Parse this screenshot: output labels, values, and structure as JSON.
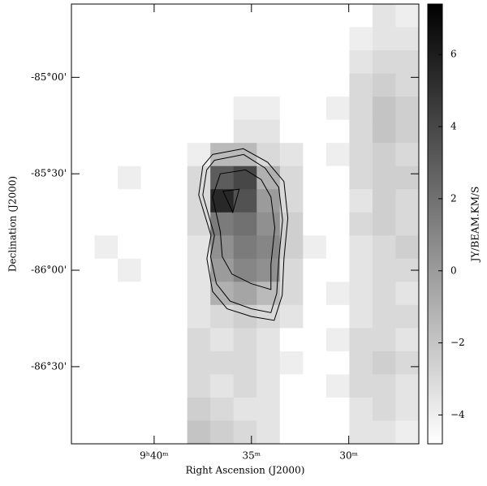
{
  "chart_data": {
    "type": "heatmap",
    "xlabel": "Right Ascension (J2000)",
    "ylabel": "Declination (J2000)",
    "colorbar_label": "JY/BEAM.KM/S",
    "xlim": [
      44.25,
      26.4
    ],
    "ylim": [
      -86.9,
      -84.62
    ],
    "xticks": [
      {
        "value": 40,
        "label": "9ʰ40ᵐ"
      },
      {
        "value": 35,
        "label": "35ᵐ"
      },
      {
        "value": 30,
        "label": "30ᵐ"
      }
    ],
    "yticks": [
      {
        "value": -85,
        "label": "-85°00'"
      },
      {
        "value": -85.5,
        "label": "-85°30'"
      },
      {
        "value": -86,
        "label": "-86°00'"
      },
      {
        "value": -86.5,
        "label": "-86°30'"
      }
    ],
    "clim": [
      -4.8,
      7.4
    ],
    "cticks": [
      {
        "value": -4,
        "label": "−4"
      },
      {
        "value": -2,
        "label": "−2"
      },
      0,
      2,
      4,
      6
    ],
    "z": [
      [
        -4.8,
        -4.8,
        -4.8,
        -4.8,
        -4.8,
        -4.8,
        -4.8,
        -4.8,
        -4.8,
        -4.8,
        -4.8,
        -4.8,
        -4.8,
        -3.5,
        -4
      ],
      [
        -4.8,
        -4.8,
        -4.8,
        -4.8,
        -4.8,
        -4.8,
        -4.8,
        -4.8,
        -4.8,
        -4.8,
        -4.8,
        -4.8,
        -4,
        -3.5,
        -3.5
      ],
      [
        -4.8,
        -4.8,
        -4.8,
        -4.8,
        -4.8,
        -4.8,
        -4.8,
        -4.8,
        -4.8,
        -4.8,
        -4.8,
        -4.8,
        -3.5,
        -3,
        -3
      ],
      [
        -4.8,
        -4.8,
        -4.8,
        -4.8,
        -4.8,
        -4.8,
        -4.8,
        -4.8,
        -4.8,
        -4.8,
        -4.8,
        -4.8,
        -3,
        -2.5,
        -3
      ],
      [
        -4.8,
        -4.8,
        -4.8,
        -4.8,
        -4.8,
        -4.8,
        -4.8,
        -4,
        -4,
        -4.8,
        -4.8,
        -4,
        -3,
        -2,
        -2.5
      ],
      [
        -4.8,
        -4.8,
        -4.8,
        -4.8,
        -4.8,
        -4.8,
        -4.8,
        -3.5,
        -3.5,
        -4.8,
        -4.8,
        -4.8,
        -3,
        -2,
        -2.5
      ],
      [
        -4.8,
        -4.8,
        -4.8,
        -4.8,
        -4.8,
        -4,
        -1.5,
        -1.5,
        -3,
        -3.5,
        -4.8,
        -4,
        -3,
        -2.5,
        -3
      ],
      [
        -4.8,
        -4.8,
        -4,
        -4.8,
        -4.8,
        -3,
        3,
        4,
        -1,
        -3,
        -4.8,
        -4.8,
        -3,
        -2.5,
        -2.5
      ],
      [
        -4.8,
        -4.8,
        -4.8,
        -4.8,
        -4.8,
        -3,
        5.5,
        3.5,
        0,
        -3,
        -4.8,
        -4.8,
        -3.5,
        -2.5,
        -3
      ],
      [
        -4.8,
        -4.8,
        -4.8,
        -4.8,
        -4.8,
        -3,
        1.5,
        2,
        0.5,
        -2.5,
        -4.8,
        -4.8,
        -3,
        -2.5,
        -3
      ],
      [
        -4.8,
        -4,
        -4.8,
        -4.8,
        -4.8,
        -3.5,
        0.5,
        1.5,
        1,
        -2.5,
        -4,
        -4.8,
        -3.5,
        -3,
        -2.5
      ],
      [
        -4.8,
        -4.8,
        -4,
        -4.8,
        -4.8,
        -3.5,
        0,
        1,
        0.5,
        -3,
        -4.8,
        -4.8,
        -3.5,
        -3,
        -3
      ],
      [
        -4.8,
        -4.8,
        -4.8,
        -4.8,
        -4.8,
        -3.5,
        -1,
        -0.5,
        -1.5,
        -3,
        -4.8,
        -4,
        -3.5,
        -3,
        -3.5
      ],
      [
        -4.8,
        -4.8,
        -4.8,
        -4.8,
        -4.8,
        -3.5,
        -3,
        -2.5,
        -3,
        -3.5,
        -4.8,
        -4.8,
        -3.5,
        -3,
        -3
      ],
      [
        -4.8,
        -4.8,
        -4.8,
        -4.8,
        -4.8,
        -3,
        -3.5,
        -3,
        -3.5,
        -4.8,
        -4.8,
        -4,
        -3,
        -3,
        -3.5
      ],
      [
        -4.8,
        -4.8,
        -4.8,
        -4.8,
        -4.8,
        -3,
        -3,
        -3,
        -3.5,
        -4,
        -4.8,
        -4.8,
        -3,
        -2.5,
        -3
      ],
      [
        -4.8,
        -4.8,
        -4.8,
        -4.8,
        -4.8,
        -3,
        -3.5,
        -3,
        -3.5,
        -4.8,
        -4.8,
        -4,
        -3,
        -3,
        -3.5
      ],
      [
        -4.8,
        -4.8,
        -4.8,
        -4.8,
        -4.8,
        -2.5,
        -3,
        -3.5,
        -3.5,
        -4.8,
        -4.8,
        -4.8,
        -3.5,
        -3,
        -3.5
      ],
      [
        -4.8,
        -4.8,
        -4.8,
        -4.8,
        -4.8,
        -2,
        -2.5,
        -3,
        -3.5,
        -4.8,
        -4.8,
        -4.8,
        -3.5,
        -3.5,
        -4
      ]
    ],
    "contours": [
      [
        [
          37.0,
          -85.4
        ],
        [
          35.42,
          -85.37
        ],
        [
          34.17,
          -85.44
        ],
        [
          33.33,
          -85.54
        ],
        [
          33.13,
          -85.73
        ],
        [
          33.33,
          -85.94
        ],
        [
          33.42,
          -86.13
        ],
        [
          33.83,
          -86.26
        ],
        [
          35.0,
          -86.24
        ],
        [
          36.25,
          -86.2
        ],
        [
          37.0,
          -86.11
        ],
        [
          37.29,
          -85.94
        ],
        [
          37.08,
          -85.82
        ],
        [
          37.71,
          -85.61
        ],
        [
          37.5,
          -85.46
        ]
      ],
      [
        [
          36.9,
          -85.43
        ],
        [
          35.4,
          -85.4
        ],
        [
          34.3,
          -85.47
        ],
        [
          33.6,
          -85.57
        ],
        [
          33.4,
          -85.74
        ],
        [
          33.6,
          -85.95
        ],
        [
          33.7,
          -86.12
        ],
        [
          34.0,
          -86.22
        ],
        [
          35.0,
          -86.2
        ],
        [
          36.1,
          -86.16
        ],
        [
          36.8,
          -86.07
        ],
        [
          37.1,
          -85.93
        ],
        [
          36.9,
          -85.82
        ],
        [
          37.5,
          -85.61
        ],
        [
          37.3,
          -85.48
        ]
      ],
      [
        [
          36.6,
          -85.5
        ],
        [
          35.3,
          -85.48
        ],
        [
          34.5,
          -85.53
        ],
        [
          34.0,
          -85.62
        ],
        [
          33.8,
          -85.78
        ],
        [
          34.0,
          -85.97
        ],
        [
          34.0,
          -86.1
        ],
        [
          35.0,
          -86.07
        ],
        [
          36.0,
          -86.02
        ],
        [
          36.5,
          -85.93
        ],
        [
          36.6,
          -85.8
        ],
        [
          37.0,
          -85.62
        ]
      ],
      [
        [
          36.46,
          -85.59
        ],
        [
          35.63,
          -85.58
        ],
        [
          35.96,
          -85.7
        ]
      ]
    ]
  }
}
